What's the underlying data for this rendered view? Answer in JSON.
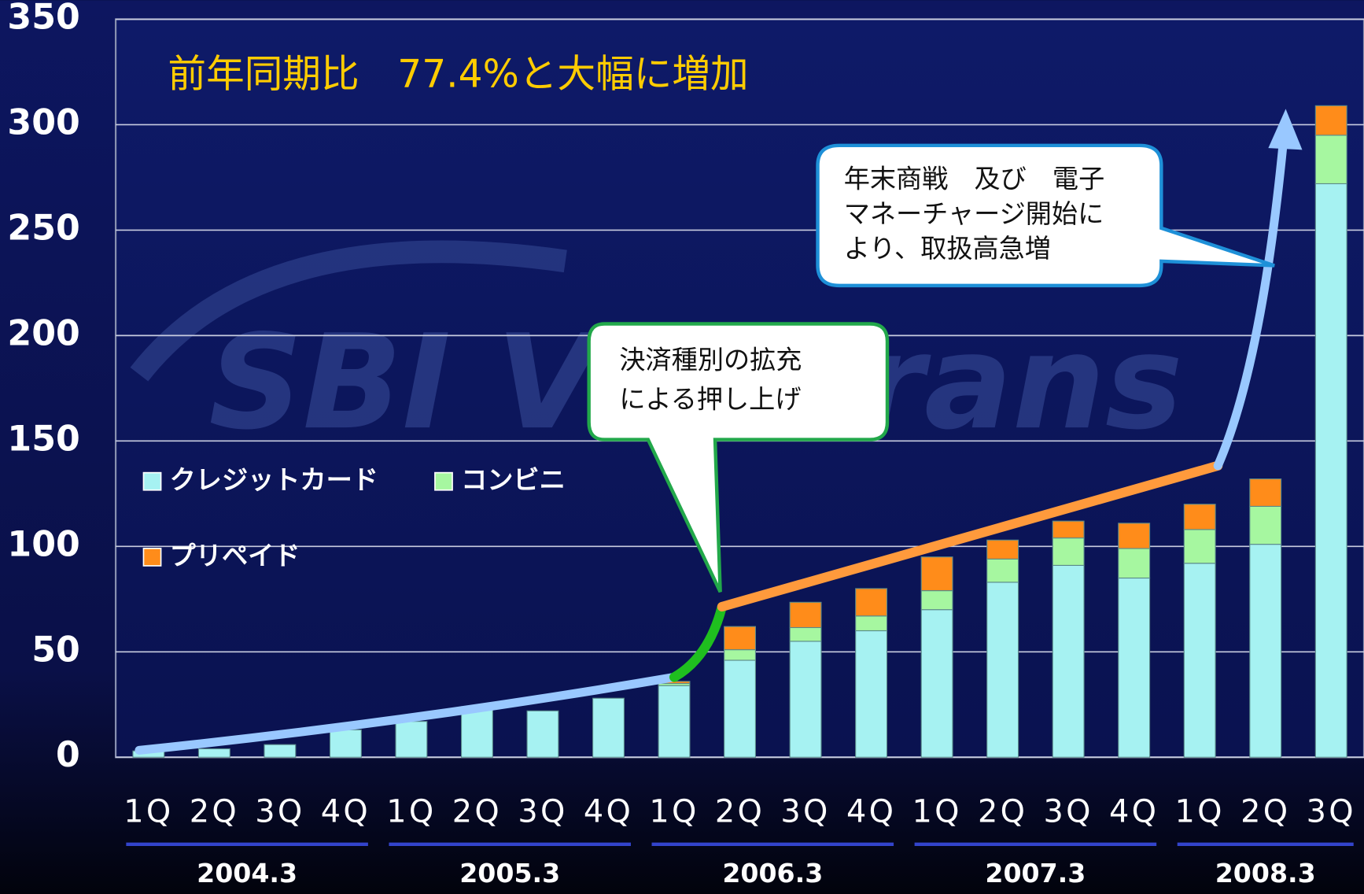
{
  "chart_data": {
    "type": "bar",
    "stacked": true,
    "title": "前年同期比　77.4%と大幅に増加",
    "watermark": "SBI VeriTrans",
    "categories": [
      "1Q",
      "2Q",
      "3Q",
      "4Q",
      "1Q",
      "2Q",
      "3Q",
      "4Q",
      "1Q",
      "2Q",
      "3Q",
      "4Q",
      "1Q",
      "2Q",
      "3Q",
      "4Q",
      "1Q",
      "2Q",
      "3Q"
    ],
    "groups": [
      "2004.3",
      "2005.3",
      "2006.3",
      "2007.3",
      "2008.3"
    ],
    "series": [
      {
        "name": "クレジットカード",
        "color": "#a6f2f2",
        "values": [
          3,
          4,
          6,
          13,
          17,
          24,
          22,
          28,
          34,
          46,
          55,
          60,
          70,
          83,
          91,
          85,
          92,
          101,
          272
        ]
      },
      {
        "name": "コンビニ",
        "color": "#a6f7a0",
        "values": [
          0,
          0,
          0,
          0,
          0,
          0,
          0,
          0,
          1,
          5,
          6.5,
          7,
          9,
          11,
          13,
          14,
          16,
          18,
          23
        ]
      },
      {
        "name": "プリペイド",
        "color": "#ff8c1a",
        "values": [
          0,
          0,
          0,
          0,
          0,
          0,
          0,
          0,
          1,
          11,
          12,
          13,
          16,
          9,
          8,
          12,
          12,
          13,
          14
        ]
      }
    ],
    "ylim": [
      0,
      350
    ],
    "yticks": [
      0,
      50,
      100,
      150,
      200,
      250,
      300,
      350
    ],
    "grid": true,
    "annotations": [
      [
        "決済種別の拡充",
        "による押し上げ"
      ],
      [
        "年末商戦　及び　電子",
        "マネーチャージ開始に",
        "より、取扱高急増"
      ]
    ]
  }
}
